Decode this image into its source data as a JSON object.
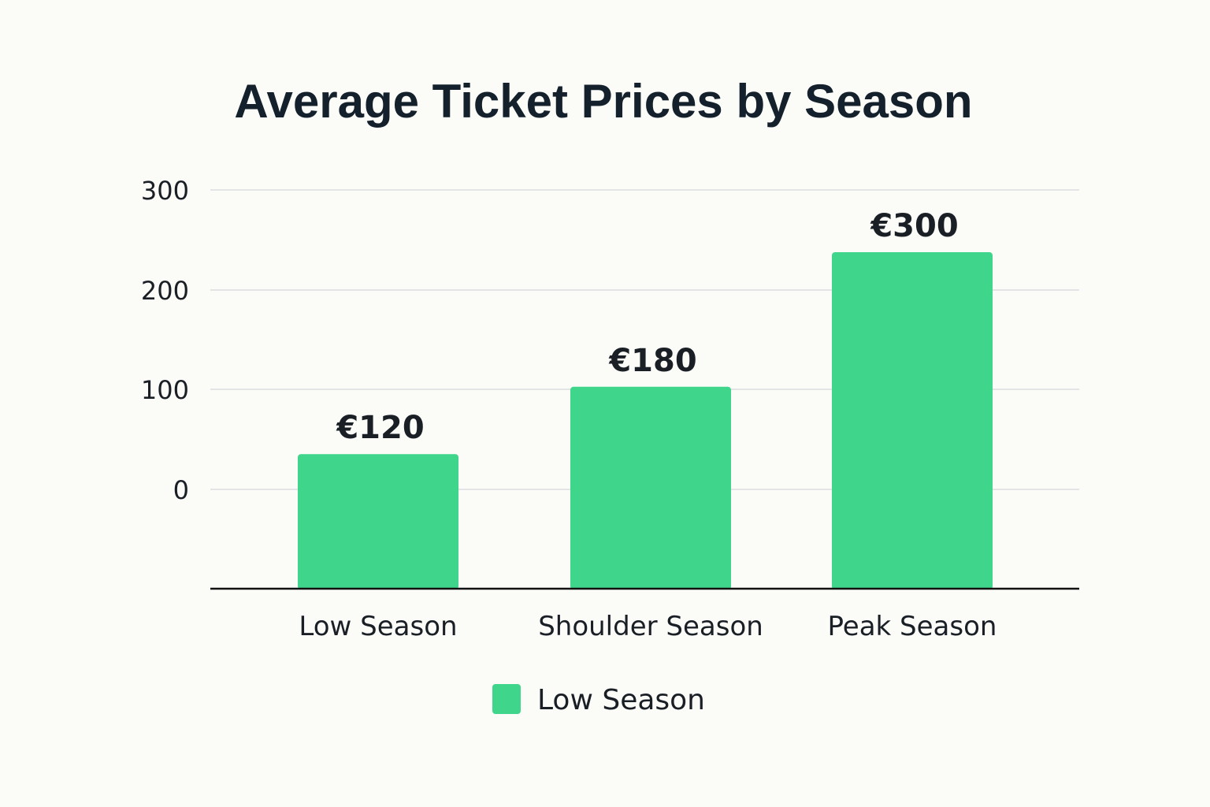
{
  "chart_data": {
    "type": "bar",
    "title": "Average Ticket Prices by Season",
    "categories": [
      "Low Season",
      "Shoulder Season",
      "Peak Season"
    ],
    "values": [
      120,
      180,
      300
    ],
    "data_labels": [
      "€120",
      "€180",
      "€300"
    ],
    "yticks": [
      "300",
      "200",
      "100",
      "0"
    ],
    "xlabel": "",
    "ylabel": "",
    "grid": true,
    "legend": {
      "placement": "bottom-center",
      "entries": [
        "Low Season"
      ]
    },
    "colors": {
      "bar": "#3fd68c",
      "gridline": "#e2e4e6",
      "axis": "#111111",
      "text": "#1a1f26",
      "background": "#fbfbf8"
    }
  }
}
